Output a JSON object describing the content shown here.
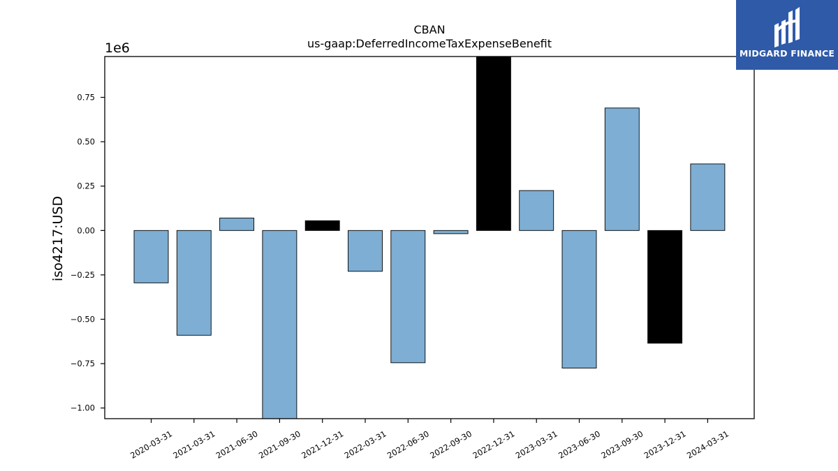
{
  "chart_data": {
    "type": "bar",
    "title": "CBAN",
    "subtitle": "us-gaap:DeferredIncomeTaxExpenseBenefit",
    "ylabel": "iso4217:USD",
    "xlabel": "",
    "y_scale_label": "1e6",
    "y_scale": 1000000,
    "ylim": [
      -1.06,
      0.98
    ],
    "yticks": [
      -1.0,
      -0.75,
      -0.5,
      -0.25,
      0.0,
      0.25,
      0.5,
      0.75
    ],
    "ytick_labels": [
      "−1.00",
      "−0.75",
      "−0.50",
      "−0.25",
      "0.00",
      "0.25",
      "0.50",
      "0.75"
    ],
    "categories": [
      "2020-03-31",
      "2021-03-31",
      "2021-06-30",
      "2021-09-30",
      "2021-12-31",
      "2022-03-31",
      "2022-06-30",
      "2022-09-30",
      "2022-12-31",
      "2023-03-31",
      "2023-06-30",
      "2023-09-30",
      "2023-12-31",
      "2024-03-31"
    ],
    "values": [
      -295000,
      -590000,
      70000,
      -1070000,
      55000,
      -230000,
      -745000,
      -18000,
      1000000,
      225000,
      -775000,
      690000,
      -635000,
      375000
    ],
    "bar_colors": [
      "#7eaed3",
      "#7eaed3",
      "#7eaed3",
      "#7eaed3",
      "#000000",
      "#7eaed3",
      "#7eaed3",
      "#7eaed3",
      "#000000",
      "#7eaed3",
      "#7eaed3",
      "#7eaed3",
      "#000000",
      "#7eaed3"
    ],
    "grid": false,
    "legend": "none"
  },
  "logo": {
    "text": "MIDGARD FINANCE",
    "color": "#2f5aa8"
  }
}
